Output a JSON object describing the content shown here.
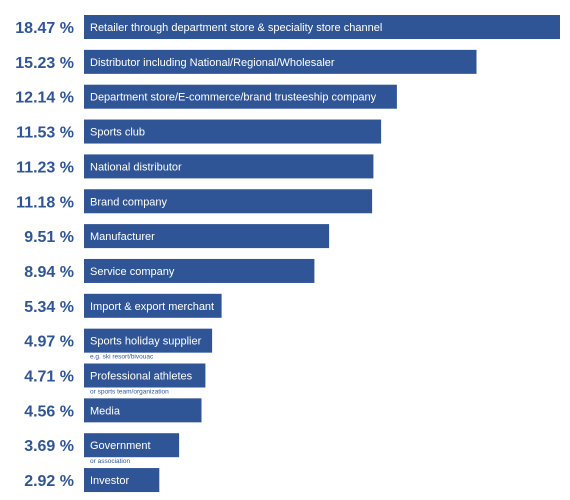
{
  "colors": {
    "bar": "#2f5597",
    "value_text": "#2f5597",
    "bar_text": "#ffffff",
    "note_text": "#2f5597"
  },
  "chart_data": {
    "type": "bar",
    "orientation": "horizontal",
    "value_suffix": "%",
    "categories": [
      "Retailer through department store & speciality store channel",
      "Distributor including National/Regional/Wholesaler",
      "Department store/E-commerce/brand trusteeship company",
      "Sports club",
      "National distributor",
      "Brand company",
      "Manufacturer",
      "Service company",
      "Import & export merchant",
      "Sports holiday supplier",
      "Professional athletes",
      "Media",
      "Government",
      "Investor"
    ],
    "values": [
      18.47,
      15.23,
      12.14,
      11.53,
      11.23,
      11.18,
      9.51,
      8.94,
      5.34,
      4.97,
      4.71,
      4.56,
      3.69,
      2.92
    ],
    "value_labels": [
      "18.47 %",
      "15.23 %",
      "12.14 %",
      "11.53 %",
      "11.23 %",
      "11.18 %",
      "9.51 %",
      "8.94 %",
      "5.34 %",
      "4.97 %",
      "4.71 %",
      "4.56 %",
      "3.69 %",
      "2.92 %"
    ],
    "notes": [
      "",
      "",
      "",
      "",
      "",
      "",
      "",
      "",
      "",
      "e.g. ski resort/bivouac",
      "or sports team/organization",
      "",
      "or association",
      ""
    ],
    "title": "",
    "xlabel": "",
    "ylabel": "",
    "xlim": [
      0,
      18.47
    ],
    "grid": false,
    "legend": "none"
  }
}
